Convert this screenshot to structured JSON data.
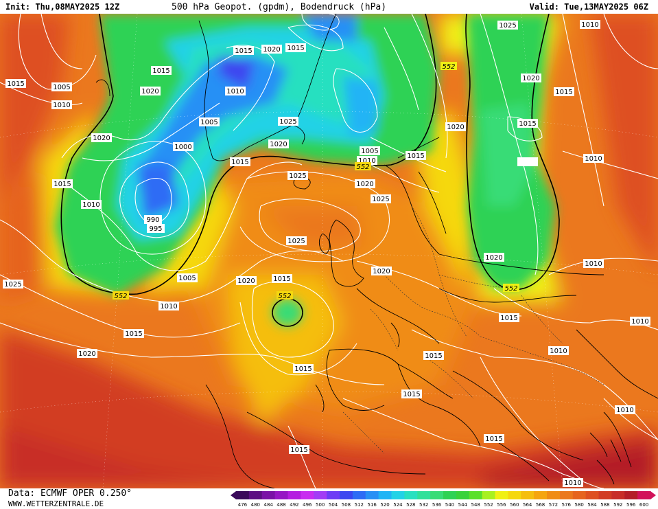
{
  "header": {
    "init": "Init: Thu,08MAY2025 12Z",
    "title": "500 hPa Geopot. (gpdm), Bodendruck (hPa)",
    "valid": "Valid: Tue,13MAY2025 06Z"
  },
  "footer": {
    "data_source": "Data: ECMWF OPER 0.250°",
    "website": "WWW.WETTERZENTRALE.DE"
  },
  "colorscale": {
    "values": [
      "476",
      "480",
      "484",
      "488",
      "492",
      "496",
      "500",
      "504",
      "508",
      "512",
      "516",
      "520",
      "524",
      "528",
      "532",
      "536",
      "540",
      "544",
      "548",
      "552",
      "556",
      "560",
      "564",
      "568",
      "572",
      "576",
      "580",
      "584",
      "588",
      "592",
      "596",
      "600"
    ],
    "colors": [
      "#3a0a5a",
      "#5c0f82",
      "#7a12a6",
      "#9617c4",
      "#b41ee0",
      "#c82df0",
      "#a23cf5",
      "#6e3cf5",
      "#3c46f0",
      "#2e6cf5",
      "#2890f5",
      "#20b4f5",
      "#22d2e6",
      "#28e0c0",
      "#30e09a",
      "#38dc76",
      "#2ed254",
      "#38d23a",
      "#5ae02a",
      "#a8f020",
      "#f0f014",
      "#f5d80f",
      "#f5be0f",
      "#f5a50f",
      "#f08c14",
      "#eb781e",
      "#e6641e",
      "#de5020",
      "#d23c23",
      "#c82d28",
      "#b41e28",
      "#d2125a"
    ]
  },
  "map": {
    "contour_552_label": "552",
    "pressure_labels": [
      {
        "id": "p1",
        "text": "1015"
      },
      {
        "id": "p2",
        "text": "1005"
      },
      {
        "id": "p3",
        "text": "1010"
      },
      {
        "id": "p4",
        "text": "1015"
      },
      {
        "id": "p5",
        "text": "1020"
      },
      {
        "id": "p6",
        "text": "1015"
      },
      {
        "id": "p7",
        "text": "1020"
      },
      {
        "id": "p8",
        "text": "1015"
      },
      {
        "id": "p9",
        "text": "1010"
      },
      {
        "id": "p10",
        "text": "1005"
      },
      {
        "id": "p11",
        "text": "1020"
      },
      {
        "id": "p12",
        "text": "1000"
      },
      {
        "id": "p13",
        "text": "1025"
      },
      {
        "id": "p14",
        "text": "1020"
      },
      {
        "id": "p15",
        "text": "1015"
      },
      {
        "id": "p16",
        "text": "1015"
      },
      {
        "id": "p17",
        "text": "1010"
      },
      {
        "id": "p18",
        "text": "990"
      },
      {
        "id": "p19",
        "text": "995"
      },
      {
        "id": "p20",
        "text": "1025"
      },
      {
        "id": "p21",
        "text": "1025"
      },
      {
        "id": "p22",
        "text": "1020"
      },
      {
        "id": "p23",
        "text": "1005"
      },
      {
        "id": "p24",
        "text": "1010"
      },
      {
        "id": "p25",
        "text": "1025"
      },
      {
        "id": "p26",
        "text": "1015"
      },
      {
        "id": "p27",
        "text": "1020"
      },
      {
        "id": "p28",
        "text": "1025"
      },
      {
        "id": "p29",
        "text": "1020"
      },
      {
        "id": "p30",
        "text": "1015"
      },
      {
        "id": "p31",
        "text": "1010"
      },
      {
        "id": "p32",
        "text": "1005"
      },
      {
        "id": "p33",
        "text": "1010"
      },
      {
        "id": "p34",
        "text": "1015"
      },
      {
        "id": "p35",
        "text": "1020"
      },
      {
        "id": "p36",
        "text": "1025"
      },
      {
        "id": "p37",
        "text": "1015"
      },
      {
        "id": "p38",
        "text": "1020"
      },
      {
        "id": "p39",
        "text": "1015"
      },
      {
        "id": "p40",
        "text": "1010"
      },
      {
        "id": "p41",
        "text": "1010"
      },
      {
        "id": "p42",
        "text": "1020"
      },
      {
        "id": "p43",
        "text": "1010"
      },
      {
        "id": "p44",
        "text": "1015"
      },
      {
        "id": "p45",
        "text": "1010"
      },
      {
        "id": "p46",
        "text": "1015"
      },
      {
        "id": "p47",
        "text": "1010"
      },
      {
        "id": "p48",
        "text": "1015"
      },
      {
        "id": "p49",
        "text": "1015"
      },
      {
        "id": "p50",
        "text": "1015"
      },
      {
        "id": "p51",
        "text": "1015"
      },
      {
        "id": "p52",
        "text": "1010"
      },
      {
        "id": "p53",
        "text": "1010"
      },
      {
        "id": "p54",
        "text": "1025"
      },
      {
        "id": "p55",
        "text": "1020"
      },
      {
        "id": "p56",
        "text": "1010"
      }
    ],
    "height_labels": [
      {
        "id": "h1",
        "text": "552"
      },
      {
        "id": "h2",
        "text": "552"
      },
      {
        "id": "h3",
        "text": "552"
      },
      {
        "id": "h4",
        "text": "552"
      },
      {
        "id": "h5",
        "text": "552"
      },
      {
        "id": "h6",
        "text": "552"
      }
    ]
  }
}
